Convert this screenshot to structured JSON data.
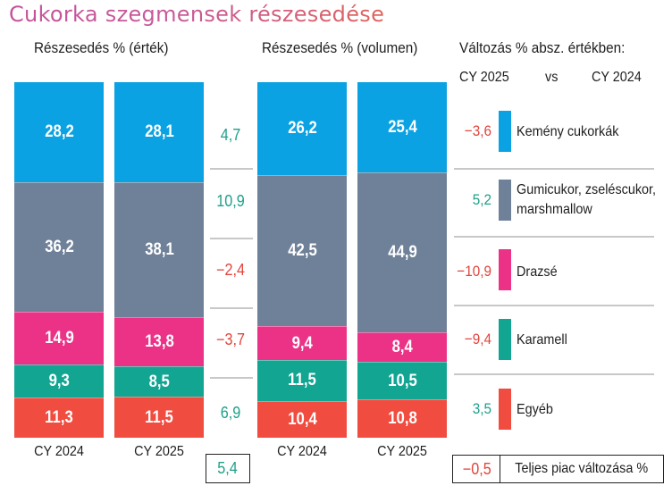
{
  "title": "Cukorka szegmensek részesedése",
  "headers": {
    "value_share": "Részesedés % (érték)",
    "volume_share": "Részesedés % (volumen)",
    "change_title": "Változás % absz. értékben:",
    "change_cy2025": "CY 2025",
    "change_vs": "vs",
    "change_cy2024": "CY 2024"
  },
  "colors": {
    "hard_candy": "#0aa2e2",
    "gummy": "#6f8199",
    "dragee": "#ec3287",
    "caramel": "#12a592",
    "other": "#f04c40",
    "positive": "#1fa08a",
    "negative": "#e0453c"
  },
  "chart_data": [
    {
      "type": "bar",
      "stacked": true,
      "title": "Részesedés % (érték)",
      "categories": [
        "CY 2024",
        "CY 2025"
      ],
      "series": [
        {
          "name": "Egyéb",
          "values": [
            11.3,
            11.5
          ],
          "labels": [
            "11,3",
            "11,5"
          ]
        },
        {
          "name": "Karamell",
          "values": [
            9.3,
            8.5
          ],
          "labels": [
            "9,3",
            "8,5"
          ]
        },
        {
          "name": "Drazsé",
          "values": [
            14.9,
            13.8
          ],
          "labels": [
            "14,9",
            "13,8"
          ]
        },
        {
          "name": "Gumicukor, zseléscukor, marshmallow",
          "values": [
            36.2,
            38.1
          ],
          "labels": [
            "36,2",
            "38,1"
          ]
        },
        {
          "name": "Kemény cukorkák",
          "values": [
            28.2,
            28.1
          ],
          "labels": [
            "28,2",
            "28,1"
          ]
        }
      ],
      "ylim": [
        0,
        100
      ]
    },
    {
      "type": "bar",
      "stacked": true,
      "title": "Részesedés % (volumen)",
      "categories": [
        "CY 2024",
        "CY 2025"
      ],
      "series": [
        {
          "name": "Egyéb",
          "values": [
            10.4,
            10.8
          ],
          "labels": [
            "10,4",
            "10,8"
          ]
        },
        {
          "name": "Karamell",
          "values": [
            11.5,
            10.5
          ],
          "labels": [
            "11,5",
            "10,5"
          ]
        },
        {
          "name": "Drazsé",
          "values": [
            9.4,
            8.4
          ],
          "labels": [
            "9,4",
            "8,4"
          ]
        },
        {
          "name": "Gumicukor, zseléscukor, marshmallow",
          "values": [
            42.5,
            44.9
          ],
          "labels": [
            "42,5",
            "44,9"
          ]
        },
        {
          "name": "Kemény cukorkák",
          "values": [
            26.2,
            25.4
          ],
          "labels": [
            "26,2",
            "25,4"
          ]
        }
      ],
      "ylim": [
        0,
        100
      ]
    },
    {
      "type": "table",
      "title": "Változás % (érték oszlopok között)",
      "rows": [
        {
          "segment": "Kemény cukorkák",
          "value": 4.7,
          "label": "4,7"
        },
        {
          "segment": "Gumicukor, zseléscukor, marshmallow",
          "value": 10.9,
          "label": "10,9"
        },
        {
          "segment": "Drazsé",
          "value": -2.4,
          "label": "−2,4"
        },
        {
          "segment": "Karamell",
          "value": -3.7,
          "label": "−3,7"
        },
        {
          "segment": "Egyéb",
          "value": 6.9,
          "label": "6,9"
        }
      ],
      "total": {
        "value": 5.4,
        "label": "5,4"
      }
    },
    {
      "type": "table",
      "title": "Változás % absz. értékben: CY 2025 vs CY 2024",
      "rows": [
        {
          "segment": "Kemény cukorkák",
          "value": -3.6,
          "label": "−3,6"
        },
        {
          "segment": "Gumicukor, zseléscukor, marshmallow",
          "value": 5.2,
          "label": "5,2"
        },
        {
          "segment": "Drazsé",
          "value": -10.9,
          "label": "−10,9"
        },
        {
          "segment": "Karamell",
          "value": -9.4,
          "label": "−9,4"
        },
        {
          "segment": "Egyéb",
          "value": 3.5,
          "label": "3,5"
        }
      ],
      "total": {
        "value": -0.5,
        "label": "−0,5",
        "text": "Teljes piac változása %"
      }
    }
  ],
  "legend": [
    {
      "line1": "Kemény cukorkák",
      "line2": ""
    },
    {
      "line1": "Gumicukor, zseléscukor,",
      "line2": "marshmallow"
    },
    {
      "line1": "Drazsé",
      "line2": ""
    },
    {
      "line1": "Karamell",
      "line2": ""
    },
    {
      "line1": "Egyéb",
      "line2": ""
    }
  ]
}
